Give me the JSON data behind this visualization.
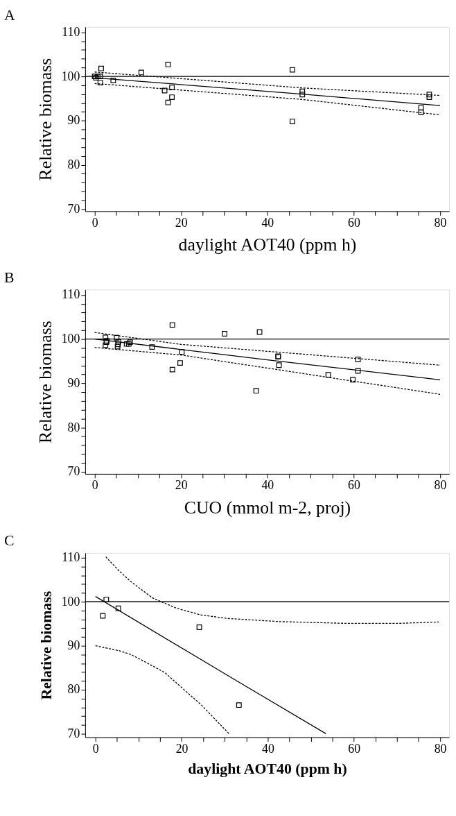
{
  "chart_data": [
    {
      "type": "scatter",
      "title": "A",
      "xlabel": "daylight AOT40 (ppm h)",
      "ylabel": "Relative biomass",
      "grid": false,
      "marker": "square",
      "xlim": [
        -2.2,
        82.1
      ],
      "ylim": [
        69.5,
        111.2
      ],
      "xticks": [
        0,
        {
          "value": 5,
          "label": null
        },
        {
          "value": 10,
          "label": null
        },
        {
          "value": 15,
          "label": null
        },
        20,
        {
          "value": 25,
          "label": null
        },
        {
          "value": 30,
          "label": null
        },
        {
          "value": 35,
          "label": null
        },
        40,
        {
          "value": 45,
          "label": null
        },
        {
          "value": 50,
          "label": null
        },
        {
          "value": 55,
          "label": null
        },
        60,
        {
          "value": 65,
          "label": null
        },
        {
          "value": 70,
          "label": null
        },
        {
          "value": 75,
          "label": null
        },
        80
      ],
      "yticks": [
        70,
        {
          "value": 72,
          "label": null
        },
        {
          "value": 74,
          "label": null
        },
        {
          "value": 76,
          "label": null
        },
        {
          "value": 78,
          "label": null
        },
        80,
        {
          "value": 82,
          "label": null
        },
        {
          "value": 84,
          "label": null
        },
        {
          "value": 86,
          "label": null
        },
        {
          "value": 88,
          "label": null
        },
        90,
        {
          "value": 92,
          "label": null
        },
        {
          "value": 94,
          "label": null
        },
        {
          "value": 96,
          "label": null
        },
        {
          "value": 98,
          "label": null
        },
        100,
        {
          "value": 102,
          "label": null
        },
        {
          "value": 104,
          "label": null
        },
        {
          "value": 106,
          "label": null
        },
        {
          "value": 108,
          "label": null
        },
        110
      ],
      "ref_lines": [
        {
          "axis": "y",
          "value": 100,
          "color": "#000000",
          "line_style": "solid"
        }
      ],
      "series": [
        {
          "color": "#000000",
          "x": [
            0,
            0.3,
            0.7,
            1.3,
            1.5,
            1.3,
            4.3,
            10.8,
            17.0,
            16.2,
            17.9,
            17.9,
            17.0,
            45.8,
            45.8,
            48.1,
            48.1,
            75.6,
            75.6,
            77.5,
            77.5
          ],
          "values": [
            100,
            99.7,
            100,
            100,
            101.8,
            98.6,
            99.1,
            100.9,
            102.7,
            96.8,
            97.5,
            95.3,
            94.1,
            101.5,
            89.8,
            96.6,
            95.9,
            92.9,
            91.9,
            95.9,
            95.3
          ]
        },
        {
          "type": "line",
          "color": "#000000",
          "line_style": "solid",
          "marker": "none",
          "x": [
            0,
            48,
            80
          ],
          "values": [
            99.7,
            96.0,
            93.4
          ]
        },
        {
          "type": "line",
          "color": "#000000",
          "line_style": "dashed",
          "marker": "none",
          "x": [
            0,
            48,
            80
          ],
          "values": [
            101.0,
            97.4,
            95.7
          ]
        },
        {
          "type": "line",
          "color": "#000000",
          "line_style": "dashed",
          "marker": "none",
          "x": [
            0,
            48,
            80
          ],
          "values": [
            98.4,
            94.8,
            91.3
          ]
        }
      ]
    },
    {
      "type": "scatter",
      "title": "B",
      "xlabel": "CUO (mmol m-2, proj)",
      "ylabel": "Relative biomass",
      "grid": false,
      "marker": "square",
      "xlim": [
        -2.2,
        82.1
      ],
      "ylim": [
        69.5,
        111.2
      ],
      "xticks": [
        0,
        {
          "value": 5,
          "label": null
        },
        {
          "value": 10,
          "label": null
        },
        {
          "value": 15,
          "label": null
        },
        20,
        {
          "value": 25,
          "label": null
        },
        {
          "value": 30,
          "label": null
        },
        {
          "value": 35,
          "label": null
        },
        40,
        {
          "value": 45,
          "label": null
        },
        {
          "value": 50,
          "label": null
        },
        {
          "value": 55,
          "label": null
        },
        60,
        {
          "value": 65,
          "label": null
        },
        {
          "value": 70,
          "label": null
        },
        {
          "value": 75,
          "label": null
        },
        80
      ],
      "yticks": [
        70,
        {
          "value": 72,
          "label": null
        },
        {
          "value": 74,
          "label": null
        },
        {
          "value": 76,
          "label": null
        },
        {
          "value": 78,
          "label": null
        },
        80,
        {
          "value": 82,
          "label": null
        },
        {
          "value": 84,
          "label": null
        },
        {
          "value": 86,
          "label": null
        },
        {
          "value": 88,
          "label": null
        },
        90,
        {
          "value": 92,
          "label": null
        },
        {
          "value": 94,
          "label": null
        },
        {
          "value": 96,
          "label": null
        },
        {
          "value": 98,
          "label": null
        },
        100,
        {
          "value": 102,
          "label": null
        },
        {
          "value": 104,
          "label": null
        },
        {
          "value": 106,
          "label": null
        },
        {
          "value": 108,
          "label": null
        },
        110
      ],
      "ref_lines": [
        {
          "axis": "y",
          "value": 100,
          "color": "#000000",
          "line_style": "solid"
        }
      ],
      "series": [
        {
          "color": "#000000",
          "x": [
            2.5,
            2.8,
            2.7,
            2.5,
            5.1,
            5.5,
            5.4,
            5.3,
            7.4,
            7.9,
            8.2,
            13.3,
            18.0,
            18.0,
            20.2,
            19.8,
            30.1,
            37.4,
            38.2,
            42.5,
            42.5,
            42.7,
            54.1,
            59.8,
            61.0,
            61.0
          ],
          "values": [
            100.4,
            99.6,
            99.3,
            98.6,
            100.3,
            99.4,
            98.8,
            98.3,
            98.9,
            98.9,
            99.3,
            98.2,
            103.2,
            93.1,
            97.1,
            94.6,
            101.2,
            88.3,
            101.6,
            96.1,
            96.0,
            94.1,
            91.9,
            90.8,
            95.4,
            92.8
          ]
        },
        {
          "type": "line",
          "color": "#000000",
          "line_style": "solid",
          "marker": "none",
          "x": [
            0,
            40,
            80
          ],
          "values": [
            100,
            95.3,
            90.8
          ]
        },
        {
          "type": "line",
          "color": "#000000",
          "line_style": "dashed",
          "marker": "none",
          "x": [
            0,
            20,
            80
          ],
          "values": [
            101.5,
            98.8,
            94.1
          ]
        },
        {
          "type": "line",
          "color": "#000000",
          "line_style": "dashed",
          "marker": "none",
          "x": [
            0,
            20,
            80
          ],
          "values": [
            98.1,
            96.4,
            87.5
          ]
        }
      ]
    },
    {
      "type": "scatter",
      "title": "C",
      "xlabel": "daylight AOT40 (ppm h)",
      "ylabel": "Relative biomass",
      "grid": false,
      "marker": "square",
      "xlim": [
        -2.4,
        82.1
      ],
      "ylim": [
        69.2,
        111.1
      ],
      "xticks": [
        0,
        {
          "value": 5,
          "label": null
        },
        {
          "value": 10,
          "label": null
        },
        {
          "value": 15,
          "label": null
        },
        20,
        {
          "value": 25,
          "label": null
        },
        {
          "value": 30,
          "label": null
        },
        {
          "value": 35,
          "label": null
        },
        40,
        {
          "value": 45,
          "label": null
        },
        {
          "value": 50,
          "label": null
        },
        {
          "value": 55,
          "label": null
        },
        60,
        {
          "value": 65,
          "label": null
        },
        {
          "value": 70,
          "label": null
        },
        {
          "value": 75,
          "label": null
        },
        80
      ],
      "yticks": [
        70,
        {
          "value": 72,
          "label": null
        },
        {
          "value": 74,
          "label": null
        },
        {
          "value": 76,
          "label": null
        },
        {
          "value": 78,
          "label": null
        },
        80,
        {
          "value": 82,
          "label": null
        },
        {
          "value": 84,
          "label": null
        },
        {
          "value": 86,
          "label": null
        },
        {
          "value": 88,
          "label": null
        },
        90,
        {
          "value": 92,
          "label": null
        },
        {
          "value": 94,
          "label": null
        },
        {
          "value": 96,
          "label": null
        },
        {
          "value": 98,
          "label": null
        },
        100,
        {
          "value": 102,
          "label": null
        },
        {
          "value": 104,
          "label": null
        },
        {
          "value": 106,
          "label": null
        },
        {
          "value": 108,
          "label": null
        },
        110
      ],
      "ref_lines": [
        {
          "axis": "y",
          "value": 100,
          "color": "#000000",
          "line_style": "solid"
        }
      ],
      "series": [
        {
          "color": "#000000",
          "x": [
            2.5,
            5.3,
            1.7,
            24.1,
            33.3
          ],
          "values": [
            100.5,
            98.5,
            96.8,
            94.2,
            76.5
          ]
        },
        {
          "type": "line",
          "color": "#000000",
          "line_style": "solid",
          "marker": "none",
          "x": [
            0,
            33,
            53.5
          ],
          "values": [
            101.2,
            81.9,
            70
          ]
        },
        {
          "type": "line",
          "color": "#000000",
          "line_style": "dashed",
          "marker": "none",
          "x": [
            2.4,
            5.4,
            8.2,
            13.2,
            15.5,
            18.9,
            24.5,
            30.7,
            42.5,
            57.7,
            70.7,
            79.7
          ],
          "values": [
            110.2,
            107.1,
            104.6,
            100.9,
            99.9,
            98.5,
            97.0,
            96.2,
            95.5,
            95.1,
            95.1,
            95.4
          ]
        },
        {
          "type": "line",
          "color": "#000000",
          "line_style": "dashed",
          "marker": "none",
          "x": [
            0,
            5.4,
            8.2,
            11,
            16.1,
            20,
            24.5,
            31
          ],
          "values": [
            90,
            88.9,
            88,
            86.6,
            83.9,
            80.5,
            76.6,
            70
          ]
        }
      ]
    }
  ]
}
